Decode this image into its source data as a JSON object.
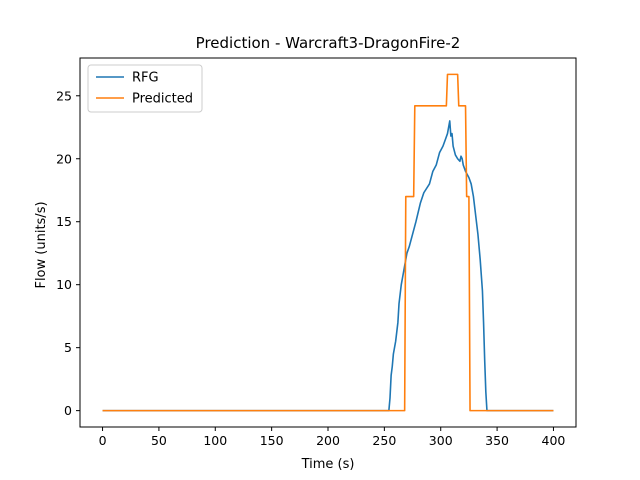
{
  "chart_data": {
    "type": "line",
    "title": "Prediction - Warcraft3-DragonFire-2",
    "xlabel": "Time (s)",
    "ylabel": "Flow (units/s)",
    "xlim": [
      -20,
      420
    ],
    "ylim": [
      -1.3,
      28
    ],
    "xticks": [
      0,
      50,
      100,
      150,
      200,
      250,
      300,
      350,
      400
    ],
    "yticks": [
      0,
      5,
      10,
      15,
      20,
      25
    ],
    "grid": false,
    "legend_position": "upper-left",
    "series": [
      {
        "name": "RFG",
        "color": "#1f77b4",
        "points": [
          [
            0,
            0
          ],
          [
            100,
            0
          ],
          [
            200,
            0
          ],
          [
            254,
            0
          ],
          [
            255,
            1.0
          ],
          [
            256,
            2.8
          ],
          [
            257,
            3.5
          ],
          [
            258,
            4.5
          ],
          [
            260,
            5.5
          ],
          [
            262,
            7.0
          ],
          [
            263,
            8.5
          ],
          [
            265,
            10.0
          ],
          [
            267,
            11.0
          ],
          [
            268,
            11.5
          ],
          [
            270,
            12.5
          ],
          [
            272,
            13.0
          ],
          [
            275,
            14.0
          ],
          [
            278,
            15.0
          ],
          [
            282,
            16.5
          ],
          [
            285,
            17.3
          ],
          [
            290,
            18.0
          ],
          [
            293,
            19.0
          ],
          [
            296,
            19.5
          ],
          [
            299,
            20.5
          ],
          [
            302,
            21.0
          ],
          [
            304,
            21.5
          ],
          [
            306,
            22.0
          ],
          [
            307,
            22.5
          ],
          [
            308,
            23.0
          ],
          [
            309,
            21.8
          ],
          [
            310,
            22.0
          ],
          [
            311,
            21.0
          ],
          [
            313,
            20.3
          ],
          [
            315,
            20.0
          ],
          [
            317,
            19.8
          ],
          [
            318,
            20.2
          ],
          [
            319,
            20.0
          ],
          [
            320,
            19.5
          ],
          [
            322,
            19.0
          ],
          [
            325,
            18.5
          ],
          [
            327,
            18.0
          ],
          [
            329,
            17.0
          ],
          [
            331,
            15.5
          ],
          [
            333,
            14.0
          ],
          [
            335,
            12.0
          ],
          [
            337,
            9.5
          ],
          [
            338,
            7.0
          ],
          [
            339,
            4.0
          ],
          [
            340,
            1.5
          ],
          [
            341,
            0
          ],
          [
            360,
            0
          ],
          [
            400,
            0
          ]
        ]
      },
      {
        "name": "Predicted",
        "color": "#ff7f0e",
        "points": [
          [
            0,
            0
          ],
          [
            268,
            0
          ],
          [
            269,
            17.0
          ],
          [
            276,
            17.0
          ],
          [
            277,
            24.2
          ],
          [
            305,
            24.2
          ],
          [
            306,
            26.7
          ],
          [
            315,
            26.7
          ],
          [
            316,
            24.2
          ],
          [
            322,
            24.2
          ],
          [
            323,
            17.0
          ],
          [
            325,
            17.0
          ],
          [
            326,
            0
          ],
          [
            400,
            0
          ]
        ]
      }
    ]
  }
}
